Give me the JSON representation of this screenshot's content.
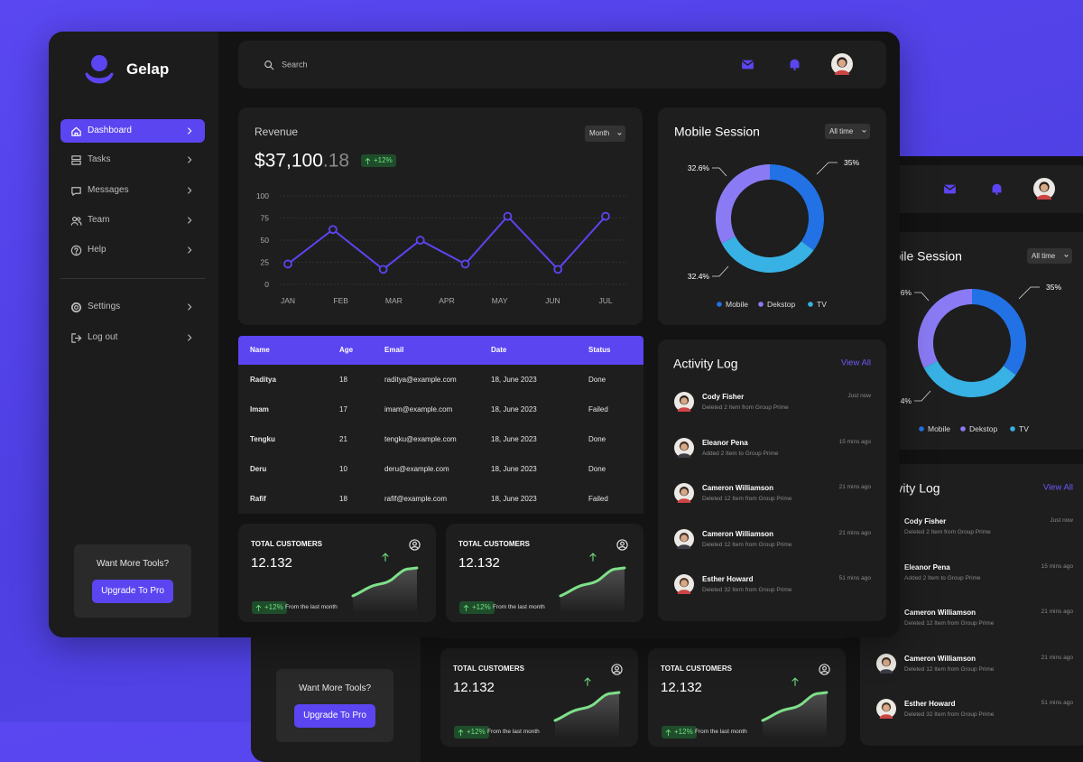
{
  "brand": "Gelap",
  "nav": [
    "Dashboard",
    "Tasks",
    "Messages",
    "Team",
    "Help"
  ],
  "nav_secondary": [
    "Settings",
    "Log out"
  ],
  "promo": {
    "title": "Want More Tools?",
    "button": "Upgrade To Pro"
  },
  "search": "Search",
  "revenue": {
    "title": "Revenue",
    "amount": "$37,100",
    "amount_decimals": ".18",
    "change": "+12%",
    "period": "Month",
    "chart_data": {
      "type": "line",
      "x": [
        1,
        1.85,
        2.8,
        3.5,
        4.35,
        5.15,
        6.1,
        7
      ],
      "values": [
        23,
        62,
        17,
        50,
        23,
        77,
        17,
        77
      ],
      "color": "#5b45f0",
      "xlim": [
        1,
        7
      ],
      "xticks": [
        {
          "value": 1,
          "label": "JAN"
        },
        {
          "value": 2,
          "label": "FEB"
        },
        {
          "value": 3,
          "label": "MAR"
        },
        {
          "value": 4,
          "label": "APR"
        },
        {
          "value": 5,
          "label": "MAY"
        },
        {
          "value": 6,
          "label": "JUN"
        },
        {
          "value": 7,
          "label": "JUL"
        }
      ],
      "ylim": [
        0,
        100
      ],
      "yticks": [
        0,
        25,
        50,
        75,
        100
      ],
      "grid": true
    }
  },
  "table": {
    "columns": [
      "Name",
      "Age",
      "Email",
      "Date",
      "Status"
    ],
    "rows": [
      [
        "Raditya",
        18,
        "raditya@example.com",
        "18, June 2023",
        "Done"
      ],
      [
        "Imam",
        17,
        "imam@example.com",
        "18, June 2023",
        "Failed"
      ],
      [
        "Tengku",
        21,
        "tengku@example.com",
        "18, June 2023",
        "Done"
      ],
      [
        "Deru",
        10,
        "deru@example.com",
        "18, June 2023",
        "Done"
      ],
      [
        "Rafif",
        18,
        "rafif@example.com",
        "18, June 2023",
        "Failed"
      ]
    ]
  },
  "mobile_session": {
    "title": "Mobile Session",
    "period": "All time",
    "chart_data": {
      "type": "pie",
      "donut": true,
      "categories": [
        "Mobile",
        "Dekstop",
        "TV"
      ],
      "values": [
        35,
        32.6,
        32.4
      ],
      "value_labels": [
        "35%",
        "32.6%",
        "32.4%"
      ],
      "colors": [
        "#2272e6",
        "#8a7bf5",
        "#38b1e4"
      ]
    }
  },
  "activity": {
    "title": "Activity Log",
    "link": "View All",
    "items": [
      {
        "name": "Cody Fisher",
        "description": "Deleted 2 Item from Group Prime",
        "time": "Just now"
      },
      {
        "name": "Eleanor Pena",
        "description": "Added 2 Item to Group Prime",
        "time": "15 mins ago"
      },
      {
        "name": "Cameron Williamson",
        "description": "Deleted 12 Item from Group Prime",
        "time": "21 mins ago"
      },
      {
        "name": "Cameron Williamson",
        "description": "Deleted 12 Item from Group Prime",
        "time": "21 mins ago"
      },
      {
        "name": "Esther Howard",
        "description": "Deleted 32 Item from Group Prime",
        "time": "51 mins ago"
      }
    ]
  },
  "stats": [
    {
      "title": "TOTAL CUSTOMERS",
      "value": "12.132",
      "change": "+12%",
      "note": "From the last month"
    },
    {
      "title": "TOTAL CUSTOMERS",
      "value": "12.132",
      "change": "+12%",
      "note": "From the last month"
    }
  ]
}
